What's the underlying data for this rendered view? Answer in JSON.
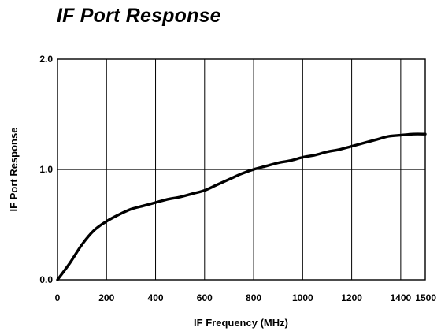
{
  "chart_data": {
    "type": "line",
    "title": "IF Port Response",
    "xlabel": "IF Frequency (MHz)",
    "ylabel": "IF Port Response",
    "xlim": [
      0,
      1500
    ],
    "ylim": [
      0,
      2
    ],
    "x_ticks": [
      "0",
      "200",
      "400",
      "600",
      "800",
      "1000",
      "1200",
      "1400",
      "1500"
    ],
    "y_ticks": [
      "0.0",
      "1.0",
      "2.0"
    ],
    "grid": "vertical lines every 200 MHz; horizontal line at 1.0",
    "series": [
      {
        "color": "#000000",
        "x": [
          0,
          50,
          100,
          150,
          200,
          250,
          300,
          350,
          400,
          450,
          500,
          550,
          600,
          650,
          700,
          750,
          800,
          850,
          900,
          950,
          1000,
          1050,
          1100,
          1150,
          1200,
          1250,
          1300,
          1350,
          1400,
          1450,
          1500
        ],
        "y": [
          0.0,
          0.15,
          0.32,
          0.45,
          0.53,
          0.59,
          0.64,
          0.67,
          0.7,
          0.73,
          0.75,
          0.78,
          0.81,
          0.86,
          0.91,
          0.96,
          1.0,
          1.03,
          1.06,
          1.08,
          1.11,
          1.13,
          1.16,
          1.18,
          1.21,
          1.24,
          1.27,
          1.3,
          1.31,
          1.32,
          1.32
        ]
      }
    ]
  }
}
